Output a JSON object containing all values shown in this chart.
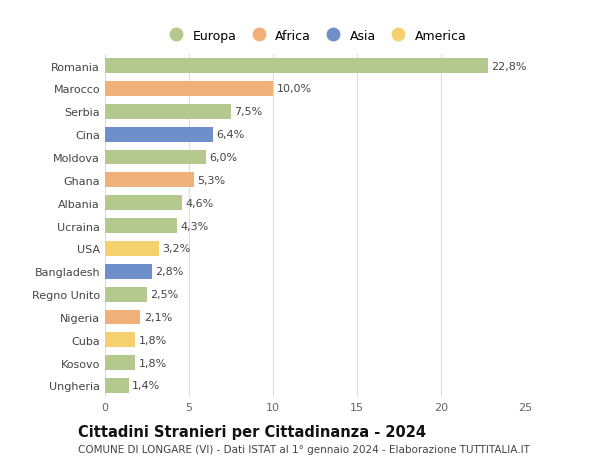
{
  "countries": [
    "Romania",
    "Marocco",
    "Serbia",
    "Cina",
    "Moldova",
    "Ghana",
    "Albania",
    "Ucraina",
    "USA",
    "Bangladesh",
    "Regno Unito",
    "Nigeria",
    "Cuba",
    "Kosovo",
    "Ungheria"
  ],
  "values": [
    22.8,
    10.0,
    7.5,
    6.4,
    6.0,
    5.3,
    4.6,
    4.3,
    3.2,
    2.8,
    2.5,
    2.1,
    1.8,
    1.8,
    1.4
  ],
  "labels": [
    "22,8%",
    "10,0%",
    "7,5%",
    "6,4%",
    "6,0%",
    "5,3%",
    "4,6%",
    "4,3%",
    "3,2%",
    "2,8%",
    "2,5%",
    "2,1%",
    "1,8%",
    "1,8%",
    "1,4%"
  ],
  "continents": [
    "Europa",
    "Africa",
    "Europa",
    "Asia",
    "Europa",
    "Africa",
    "Europa",
    "Europa",
    "America",
    "Asia",
    "Europa",
    "Africa",
    "America",
    "Europa",
    "Europa"
  ],
  "colors": {
    "Europa": "#b5c98e",
    "Africa": "#f0b07a",
    "Asia": "#6e8fc9",
    "America": "#f5d06e"
  },
  "legend_order": [
    "Europa",
    "Africa",
    "Asia",
    "America"
  ],
  "title": "Cittadini Stranieri per Cittadinanza - 2024",
  "subtitle": "COMUNE DI LONGARE (VI) - Dati ISTAT al 1° gennaio 2024 - Elaborazione TUTTITALIA.IT",
  "xlim": [
    0,
    25
  ],
  "xticks": [
    0,
    5,
    10,
    15,
    20,
    25
  ],
  "bg_color": "#ffffff",
  "grid_color": "#dddddd",
  "bar_height": 0.65,
  "label_fontsize": 8,
  "tick_fontsize": 8,
  "title_fontsize": 10.5,
  "subtitle_fontsize": 7.5
}
